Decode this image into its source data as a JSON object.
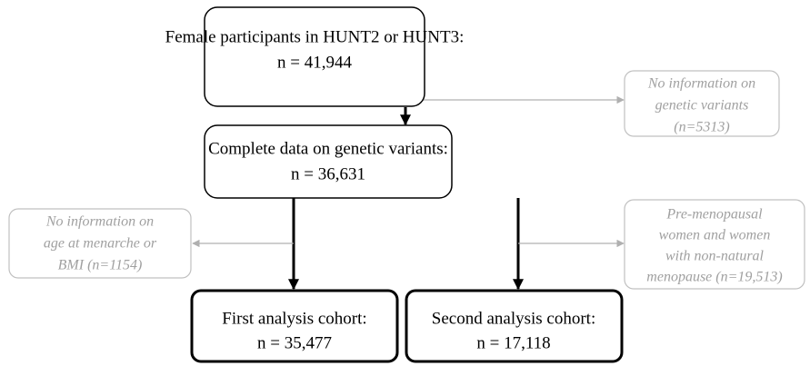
{
  "nodes": [
    {
      "lines": [
        "Female participants in HUNT2 or HUNT3:",
        "n = 41,944"
      ]
    },
    {
      "lines": [
        "No information on",
        "genetic variants",
        "(n=5313)"
      ]
    },
    {
      "lines": [
        "Complete data on genetic variants:",
        "n = 36,631"
      ]
    },
    {
      "lines": [
        "No information on",
        "age at menarche or",
        "BMI (n=1154)"
      ]
    },
    {
      "lines": [
        "Pre-menopausal",
        "women and women",
        "with non-natural",
        "menopause (n=19,513)"
      ]
    },
    {
      "lines": [
        "First analysis cohort:",
        "n = 35,477"
      ]
    },
    {
      "lines": [
        "Second analysis cohort:",
        "n = 17,118"
      ]
    }
  ]
}
